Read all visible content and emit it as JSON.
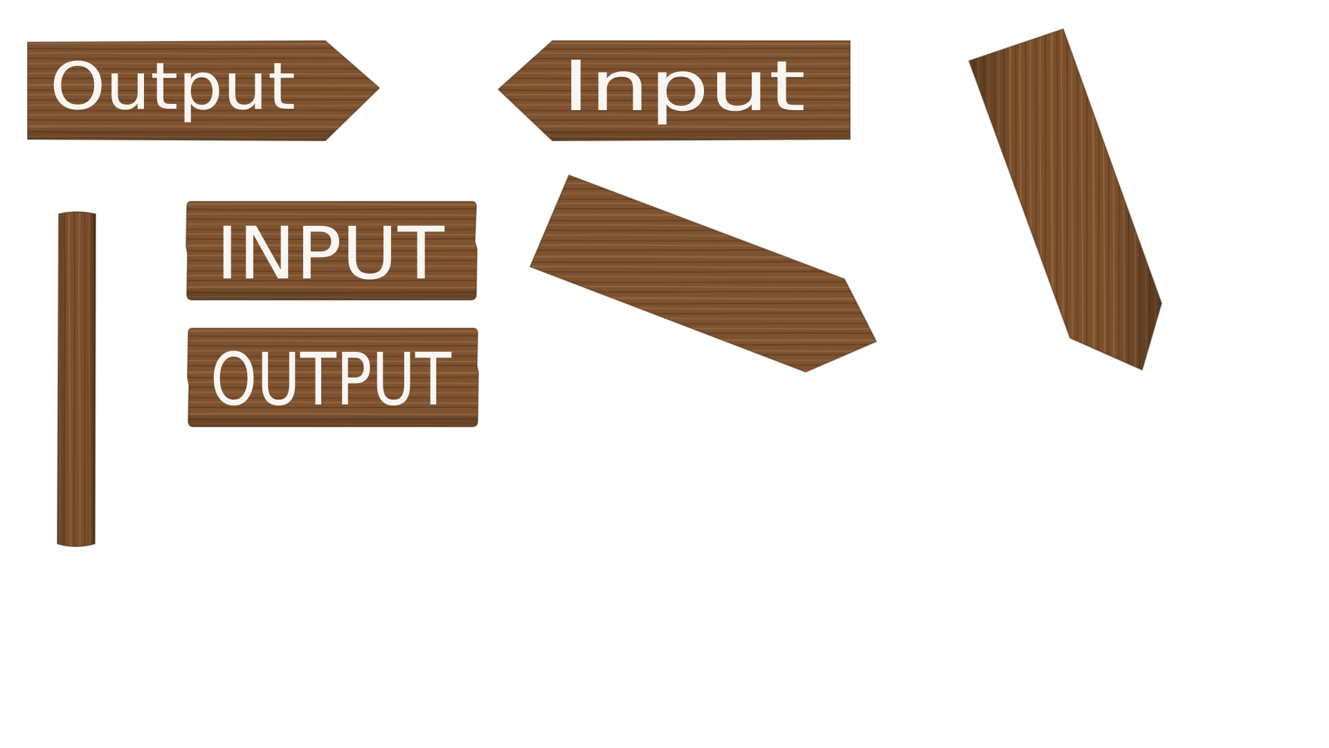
{
  "signs": {
    "output_arrow": {
      "label": "Output"
    },
    "input_arrow": {
      "label": "Input"
    },
    "input_plank": {
      "label": "INPUT"
    },
    "output_plank": {
      "label": "OUTPUT"
    }
  },
  "colors": {
    "wood_base": "#7a4f2c",
    "wood_light": "#9a6a3e",
    "wood_dark": "#55341a",
    "label": "#f8f6f2",
    "background": "#ffffff"
  },
  "icons": {
    "post": "wooden-post-icon",
    "blank_arrow_diagonal": "blank-arrow-sign-icon",
    "blank_arrow_tilted": "blank-arrow-sign-icon"
  }
}
